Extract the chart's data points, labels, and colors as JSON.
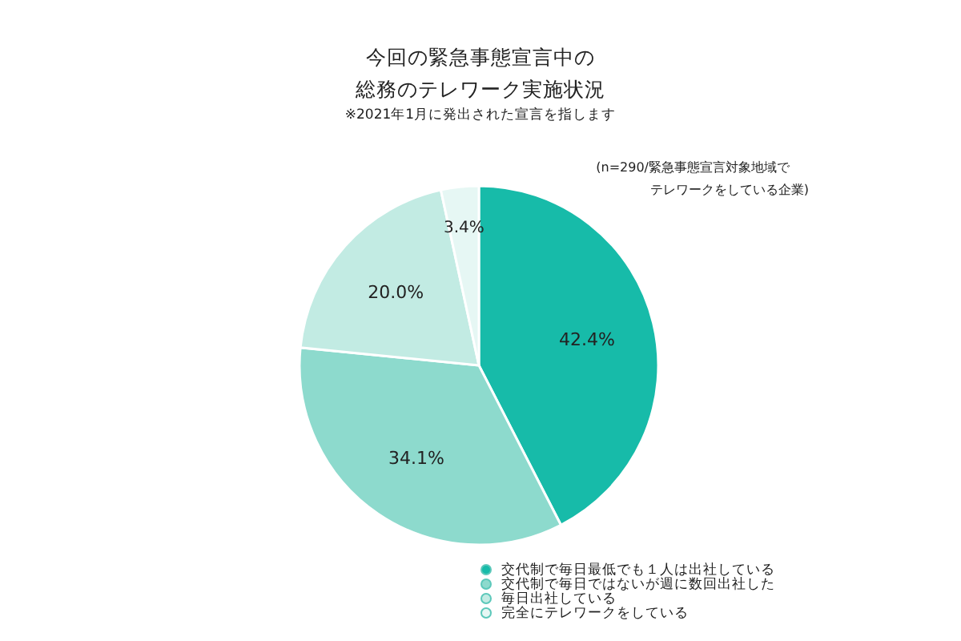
{
  "chart_data": {
    "type": "pie",
    "title": "今回の緊急事態宣言中の総務のテレワーク実施状況",
    "subtitle": "※2021年1月に発出された宣言を指します",
    "annotations": [
      "(n=290/緊急事態宣言対象地域で",
      "テレワークをしている企業)"
    ],
    "categories": [
      "交代制で毎日最低でも１人は出社している",
      "交代制で毎日ではないが週に数回出社した",
      "毎日出社している",
      "完全にテレワークをしている"
    ],
    "values": [
      42.4,
      34.1,
      20.0,
      3.4
    ],
    "value_labels": [
      "42.4%",
      "34.1%",
      "20.0%",
      "3.4%"
    ],
    "colors": [
      "#17bba9",
      "#8ddacd",
      "#c2ebe3",
      "#e6f7f4"
    ],
    "legend": "bottom right"
  }
}
